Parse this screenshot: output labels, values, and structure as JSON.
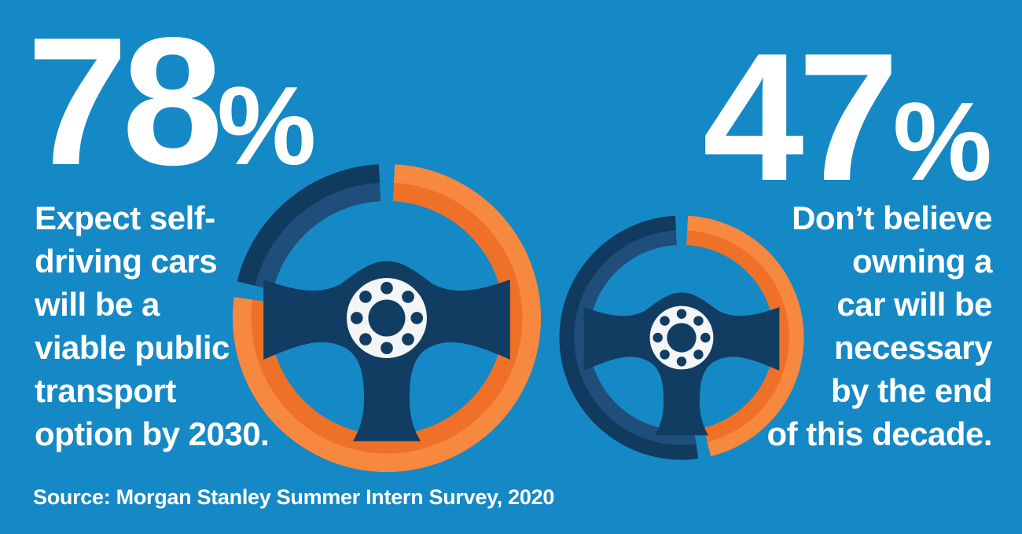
{
  "chart_data": [
    {
      "type": "pie",
      "variant": "donut-progress-steering-wheel",
      "title": "78%",
      "labels": [
        "Expect self-driving cars will be a viable public transport option by 2030.",
        "Remainder"
      ],
      "values": [
        78,
        22
      ],
      "colors": [
        "#F6883F",
        "#103A5E"
      ],
      "start_angle_deg": -90,
      "direction": "clockwise",
      "gap_deg": 6,
      "legend": "off"
    },
    {
      "type": "pie",
      "variant": "donut-progress-steering-wheel",
      "title": "47%",
      "labels": [
        "Don’t believe owning a car will be necessary by the end of this decade.",
        "Remainder"
      ],
      "values": [
        47,
        53
      ],
      "colors": [
        "#F6883F",
        "#103A5E"
      ],
      "start_angle_deg": -90,
      "direction": "clockwise",
      "gap_deg": 6,
      "legend": "off"
    }
  ],
  "stats": [
    {
      "value": "78",
      "unit": "%",
      "percent": 78,
      "description": "Expect self-driving cars will be a viable public transport option by 2030.",
      "description_lines": [
        "Expect self-",
        "driving cars",
        "will be a",
        "viable public",
        "transport",
        "option by 2030."
      ]
    },
    {
      "value": "47",
      "unit": "%",
      "percent": 47,
      "description": "Don’t believe owning a car will be necessary by the end of this decade.",
      "description_lines": [
        "Don’t believe",
        "owning a",
        "car will be",
        "necessary",
        "by the end",
        "of this decade."
      ]
    }
  ],
  "source": {
    "text": "Source: Morgan Stanley Summer Intern Survey, 2020"
  },
  "colors": {
    "background": "#1589C5",
    "text": "#FFFFFF",
    "wheel": {
      "accent_light": "#F6883F",
      "accent_dark": "#EE7127",
      "remainder_dark": "#103A5E",
      "remainder_light": "#1E4E79",
      "spokes": "#123D63",
      "hub": "#F4F5F6"
    }
  }
}
